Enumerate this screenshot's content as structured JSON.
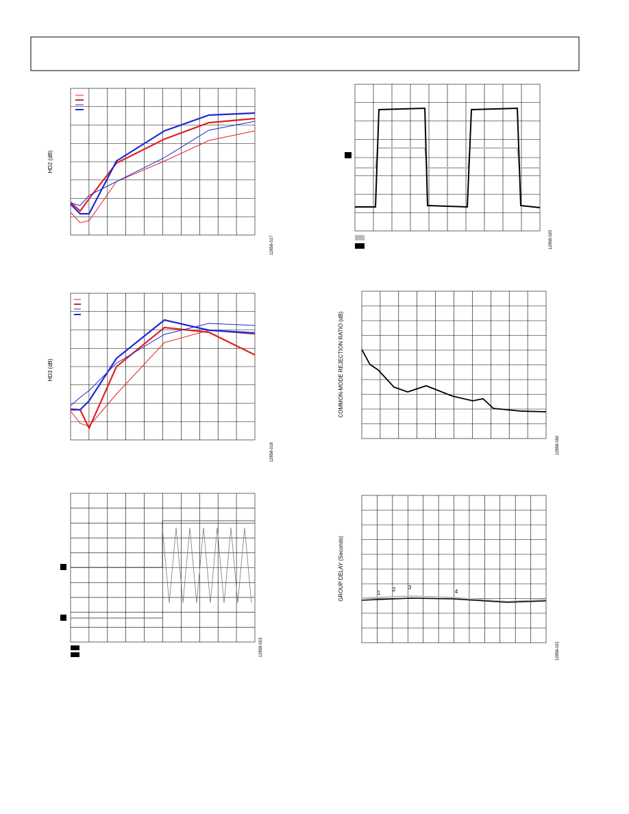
{
  "plots": [
    {
      "y_label": "HD2 (dB)",
      "figure_id": "12858-017"
    },
    {
      "y_label": "HD3 (dB)",
      "figure_id": "12858-018"
    },
    {
      "figure_id": "12858-023"
    },
    {
      "figure_id": "12858-020"
    },
    {
      "y_label": "COMMON-MODE REJECTION RATIO (dB)",
      "figure_id": "12858-050"
    },
    {
      "y_label": "GROUP DELAY (Seconds)",
      "figure_id": "12858-021",
      "markers": [
        "1",
        "2",
        "3",
        "4"
      ]
    }
  ]
}
